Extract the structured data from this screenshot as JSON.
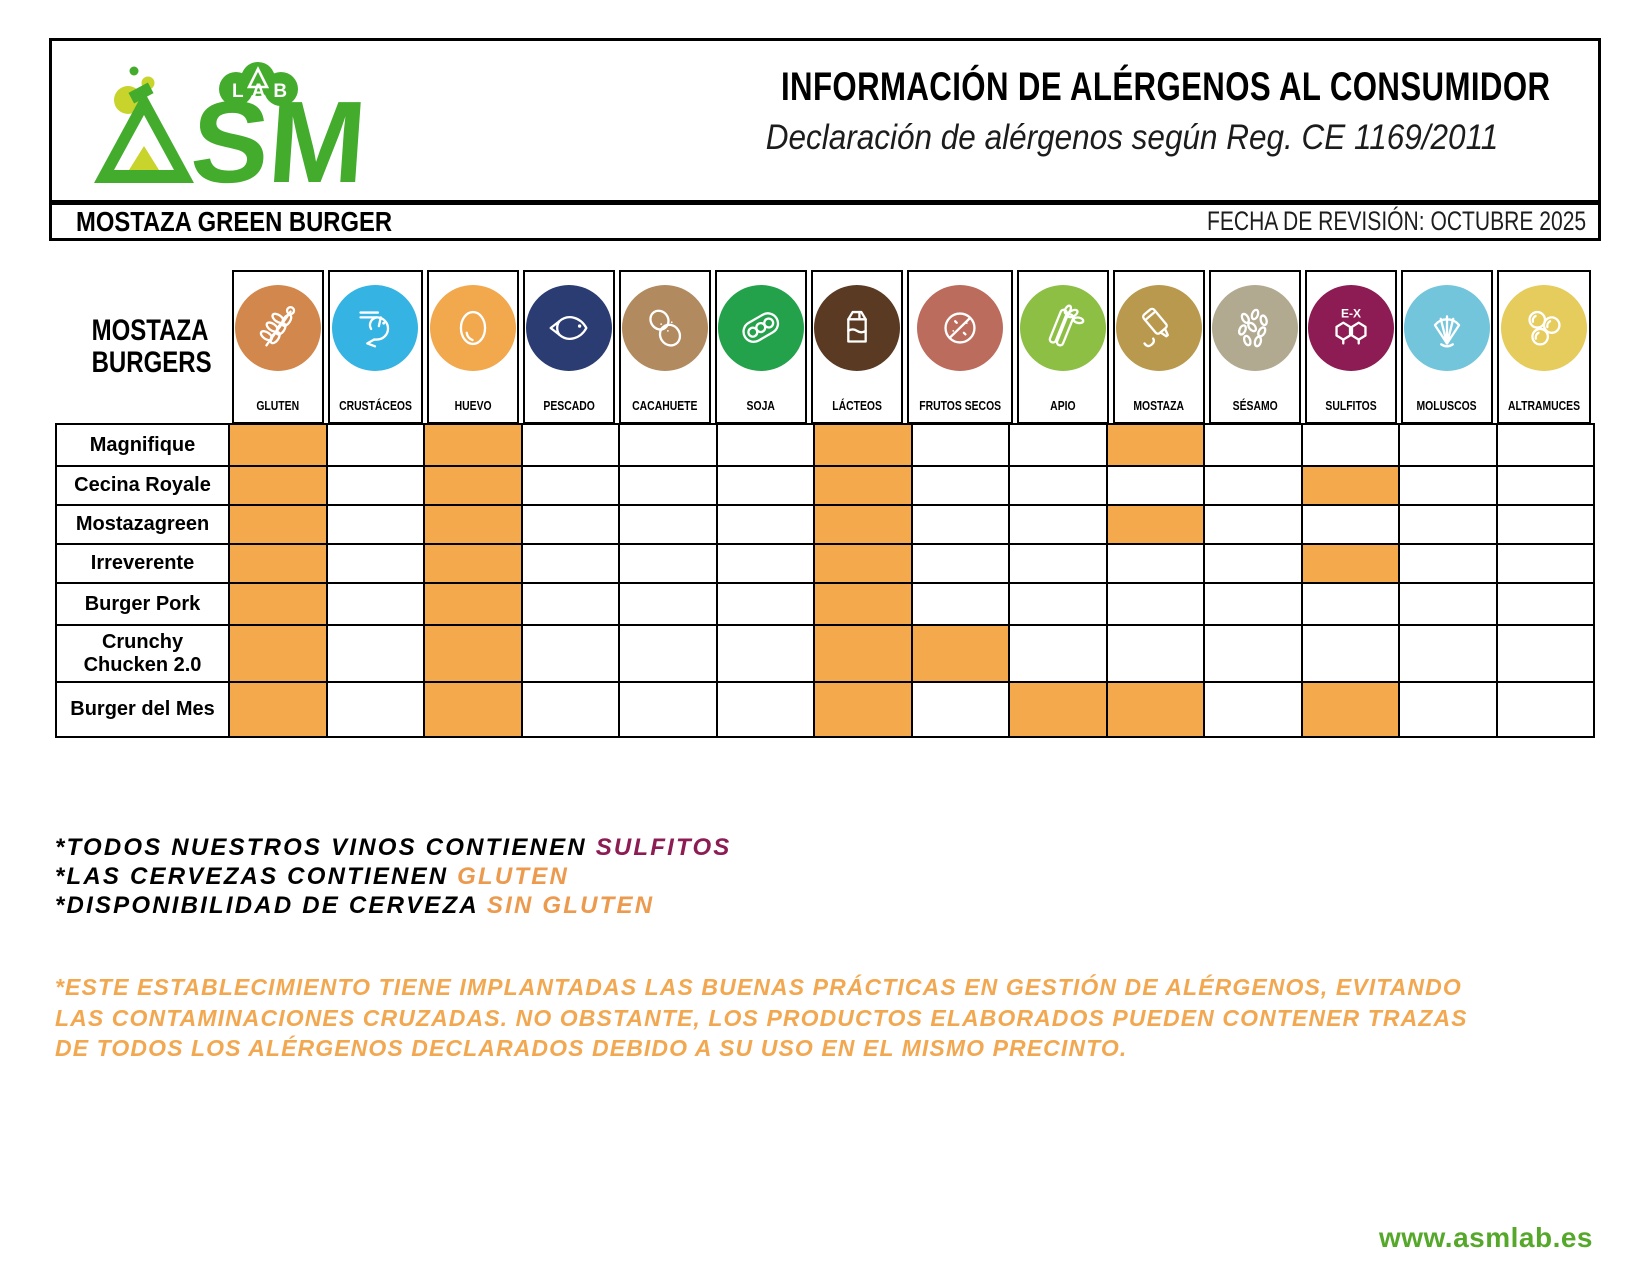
{
  "header": {
    "logo": {
      "brand": "ASM",
      "brand_sm": "SM",
      "lab": "LAB",
      "green": "#44AC2D",
      "yellow_green": "#C8D42C"
    },
    "title": "INFORMACIÓN DE ALÉRGENOS AL CONSUMIDOR",
    "subtitle": "Declaración de alérgenos según Reg. CE 1169/2011"
  },
  "subheader": {
    "restaurant": "MOSTAZA GREEN BURGER",
    "revision": "FECHA DE REVISIÓN: OCTUBRE 2025"
  },
  "table": {
    "row_group_label": "MOSTAZA BURGERS",
    "highlight_color": "#F5A94D",
    "allergens": [
      {
        "label": "GLUTEN",
        "color": "#D2884C",
        "icon": "wheat-icon"
      },
      {
        "label": "CRUSTÁCEOS",
        "color": "#35B3E3",
        "icon": "shrimp-icon"
      },
      {
        "label": "HUEVO",
        "color": "#F2A84D",
        "icon": "egg-icon"
      },
      {
        "label": "PESCADO",
        "color": "#2B3C72",
        "icon": "fish-icon"
      },
      {
        "label": "CACAHUETE",
        "color": "#B28A5F",
        "icon": "peanut-icon"
      },
      {
        "label": "SOJA",
        "color": "#23A24B",
        "icon": "soy-icon"
      },
      {
        "label": "LÁCTEOS",
        "color": "#5B3A23",
        "icon": "milk-icon"
      },
      {
        "label": "FRUTOS SECOS",
        "color": "#BB6C5D",
        "icon": "walnut-icon"
      },
      {
        "label": "APIO",
        "color": "#8DBF44",
        "icon": "celery-icon"
      },
      {
        "label": "MOSTAZA",
        "color": "#B9994E",
        "icon": "mustard-icon"
      },
      {
        "label": "SÉSAMO",
        "color": "#B1AA91",
        "icon": "sesame-icon"
      },
      {
        "label": "SULFITOS",
        "color": "#8C1C53",
        "icon": "sulfites-icon",
        "icon_text": "E-X"
      },
      {
        "label": "MOLUSCOS",
        "color": "#73C5DC",
        "icon": "shell-icon"
      },
      {
        "label": "ALTRAMUCES",
        "color": "#E6CB5D",
        "icon": "lupin-icon"
      }
    ],
    "rows": [
      {
        "name": "Magnifique",
        "marks": [
          1,
          0,
          1,
          0,
          0,
          0,
          1,
          0,
          0,
          1,
          0,
          0,
          0,
          0
        ]
      },
      {
        "name": "Cecina Royale",
        "marks": [
          1,
          0,
          1,
          0,
          0,
          0,
          1,
          0,
          0,
          0,
          0,
          1,
          0,
          0
        ]
      },
      {
        "name": "Mostazagreen",
        "marks": [
          1,
          0,
          1,
          0,
          0,
          0,
          1,
          0,
          0,
          1,
          0,
          0,
          0,
          0
        ]
      },
      {
        "name": "Irreverente",
        "marks": [
          1,
          0,
          1,
          0,
          0,
          0,
          1,
          0,
          0,
          0,
          0,
          1,
          0,
          0
        ]
      },
      {
        "name": "Burger Pork",
        "marks": [
          1,
          0,
          1,
          0,
          0,
          0,
          1,
          0,
          0,
          0,
          0,
          0,
          0,
          0
        ]
      },
      {
        "name": "Crunchy Chucken 2.0",
        "marks": [
          1,
          0,
          1,
          0,
          0,
          0,
          1,
          1,
          0,
          0,
          0,
          0,
          0,
          0
        ]
      },
      {
        "name": "Burger del Mes",
        "marks": [
          1,
          0,
          1,
          0,
          0,
          0,
          1,
          0,
          1,
          1,
          0,
          1,
          0,
          0
        ]
      }
    ]
  },
  "notes": [
    {
      "text": "*TODOS NUESTROS VINOS CONTIENEN ",
      "highlight": "SULFITOS",
      "color": "#8C1C53"
    },
    {
      "text": "*LAS CERVEZAS CONTIENEN ",
      "highlight": "GLUTEN",
      "color": "#EC9A4E"
    },
    {
      "text": "*DISPONIBILIDAD DE CERVEZA ",
      "highlight": "SIN GLUTEN",
      "color": "#EC9A4E"
    }
  ],
  "disclaimer": {
    "color": "#F2A851",
    "lines": [
      "*ESTE ESTABLECIMIENTO TIENE IMPLANTADAS LAS BUENAS PRÁCTICAS EN GESTIÓN DE ALÉRGENOS, EVITANDO",
      "LAS CONTAMINACIONES CRUZADAS. NO OBSTANTE, LOS PRODUCTOS ELABORADOS PUEDEN CONTENER TRAZAS",
      "DE TODOS LOS ALÉRGENOS DECLARADOS DEBIDO A SU USO EN EL MISMO PRECINTO."
    ]
  },
  "footer": {
    "website": "www.asmlab.es",
    "color": "#56A82B"
  }
}
